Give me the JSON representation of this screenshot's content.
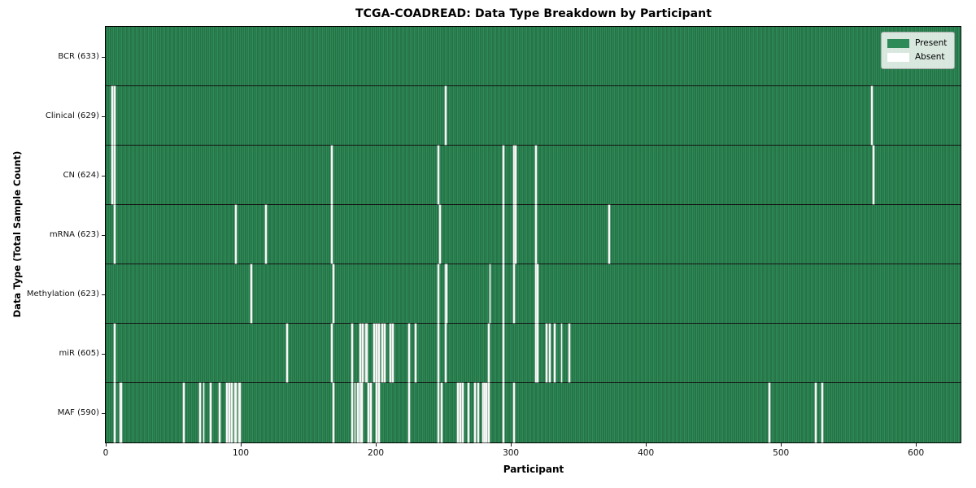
{
  "figure": {
    "background": "#ffffff"
  },
  "chart_data": {
    "type": "heatmap",
    "title": "TCGA-COADREAD: Data Type Breakdown by Participant",
    "xlabel": "Participant",
    "ylabel": "Data Type (Total Sample Count)",
    "x_ticks": [
      0,
      100,
      200,
      300,
      400,
      500,
      600
    ],
    "n_participants": 633,
    "grid": false,
    "colors": {
      "present": "#2e8b57",
      "present_edge": "#1d5e3a",
      "absent": "#f7f7f7",
      "row_separator": "#141414"
    },
    "legend": {
      "position": "upper right",
      "entries": [
        {
          "label": "Present",
          "color": "#2e8b57"
        },
        {
          "label": "Absent",
          "color": "#ffffff"
        }
      ]
    },
    "rows": [
      {
        "name": "bcr",
        "label": "BCR (633)",
        "data_type": "BCR",
        "present_count": 633,
        "absent_participants": []
      },
      {
        "name": "clinical",
        "label": "Clinical (629)",
        "data_type": "Clinical",
        "present_count": 629,
        "absent_participants": [
          4,
          6,
          251,
          567
        ]
      },
      {
        "name": "cn",
        "label": "CN (624)",
        "data_type": "CN",
        "present_count": 624,
        "absent_participants": [
          4,
          6,
          167,
          246,
          294,
          302,
          303,
          318,
          568
        ]
      },
      {
        "name": "mrna",
        "label": "mRNA (623)",
        "data_type": "mRNA",
        "present_count": 623,
        "absent_participants": [
          6,
          96,
          118,
          167,
          247,
          294,
          302,
          303,
          318,
          372
        ]
      },
      {
        "name": "methylation",
        "label": "Methylation (623)",
        "data_type": "Methylation",
        "present_count": 623,
        "absent_participants": [
          107,
          168,
          246,
          251,
          252,
          284,
          294,
          302,
          318,
          319
        ]
      },
      {
        "name": "mir",
        "label": "miR (605)",
        "data_type": "miR",
        "present_count": 605,
        "absent_participants": [
          6,
          134,
          167,
          182,
          188,
          190,
          192,
          193,
          198,
          200,
          202,
          204,
          206,
          210,
          212,
          224,
          229,
          246,
          251,
          283,
          294,
          318,
          319,
          326,
          328,
          332,
          337,
          343
        ]
      },
      {
        "name": "maf",
        "label": "MAF (590)",
        "data_type": "MAF",
        "present_count": 590,
        "absent_participants": [
          6,
          10,
          11,
          57,
          69,
          72,
          77,
          84,
          89,
          91,
          93,
          95,
          96,
          98,
          99,
          168,
          182,
          184,
          186,
          188,
          189,
          194,
          196,
          200,
          202,
          224,
          246,
          248,
          260,
          262,
          264,
          268,
          273,
          275,
          279,
          280,
          281,
          283,
          294,
          302,
          491,
          525,
          530
        ]
      }
    ]
  }
}
